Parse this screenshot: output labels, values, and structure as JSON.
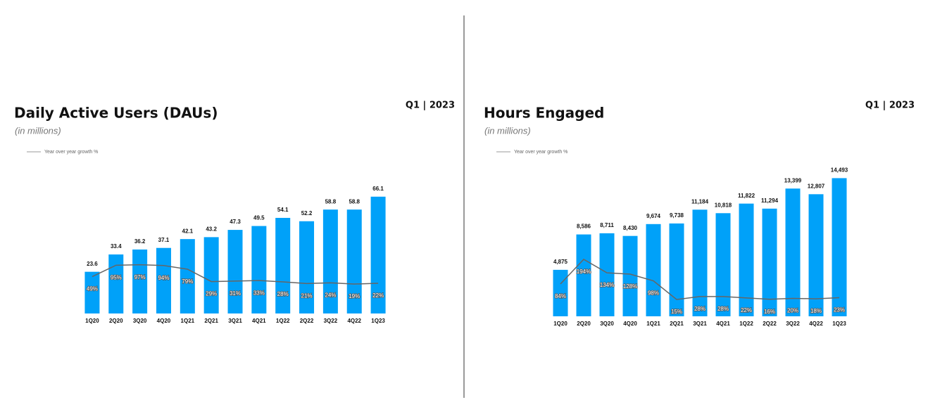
{
  "chart_data": [
    {
      "type": "bar",
      "title": "Daily Active Users (DAUs)",
      "subtitle": "(in millions)",
      "period": "Q1 | 2023",
      "categories": [
        "1Q20",
        "2Q20",
        "3Q20",
        "4Q20",
        "1Q21",
        "2Q21",
        "3Q21",
        "4Q21",
        "1Q22",
        "2Q22",
        "3Q22",
        "4Q22",
        "1Q23"
      ],
      "ylim": [
        0,
        70
      ],
      "y2lim": [
        -100,
        400
      ],
      "legend": "top-left",
      "series": [
        {
          "name": "DAUs",
          "type": "bar",
          "color": "#00a1f9",
          "values": [
            23.6,
            33.4,
            36.2,
            37.1,
            42.1,
            43.2,
            47.3,
            49.5,
            54.1,
            52.2,
            58.8,
            58.8,
            66.1
          ]
        },
        {
          "name": "Year over year growth %",
          "type": "line",
          "axis": "y2",
          "color": "#666666",
          "values": [
            49,
            95,
            97,
            94,
            79,
            29,
            31,
            33,
            28,
            21,
            24,
            19,
            22
          ],
          "value_labels": [
            "49%",
            "95%",
            "97%",
            "94%",
            "79%",
            "29%",
            "31%",
            "33%",
            "28%",
            "21%",
            "24%",
            "19%",
            "22%"
          ]
        }
      ]
    },
    {
      "type": "bar",
      "title": "Hours Engaged",
      "subtitle": "(in millions)",
      "period": "Q1 | 2023",
      "categories": [
        "1Q20",
        "2Q20",
        "3Q20",
        "4Q20",
        "1Q21",
        "2Q21",
        "3Q21",
        "4Q21",
        "1Q22",
        "2Q22",
        "3Q22",
        "4Q22",
        "1Q23"
      ],
      "ylim": [
        0,
        16000
      ],
      "y2lim": [
        -60,
        620
      ],
      "legend": "top-left",
      "series": [
        {
          "name": "Hours Engaged",
          "type": "bar",
          "color": "#00a1f9",
          "values": [
            4875,
            8586,
            8711,
            8430,
            9674,
            9738,
            11184,
            10818,
            11822,
            11294,
            13399,
            12807,
            14493
          ],
          "value_labels": [
            "4,875",
            "8,586",
            "8,711",
            "8,430",
            "9,674",
            "9,738",
            "11,184",
            "10,818",
            "11,822",
            "11,294",
            "13,399",
            "12,807",
            "14,493"
          ]
        },
        {
          "name": "Year over year growth %",
          "type": "line",
          "axis": "y2",
          "color": "#666666",
          "values": [
            84,
            194,
            134,
            128,
            98,
            15,
            28,
            28,
            22,
            16,
            20,
            18,
            23
          ],
          "value_labels": [
            "84%",
            "194%",
            "134%",
            "128%",
            "98%",
            "15%",
            "28%",
            "28%",
            "22%",
            "16%",
            "20%",
            "18%",
            "23%"
          ]
        }
      ]
    }
  ]
}
